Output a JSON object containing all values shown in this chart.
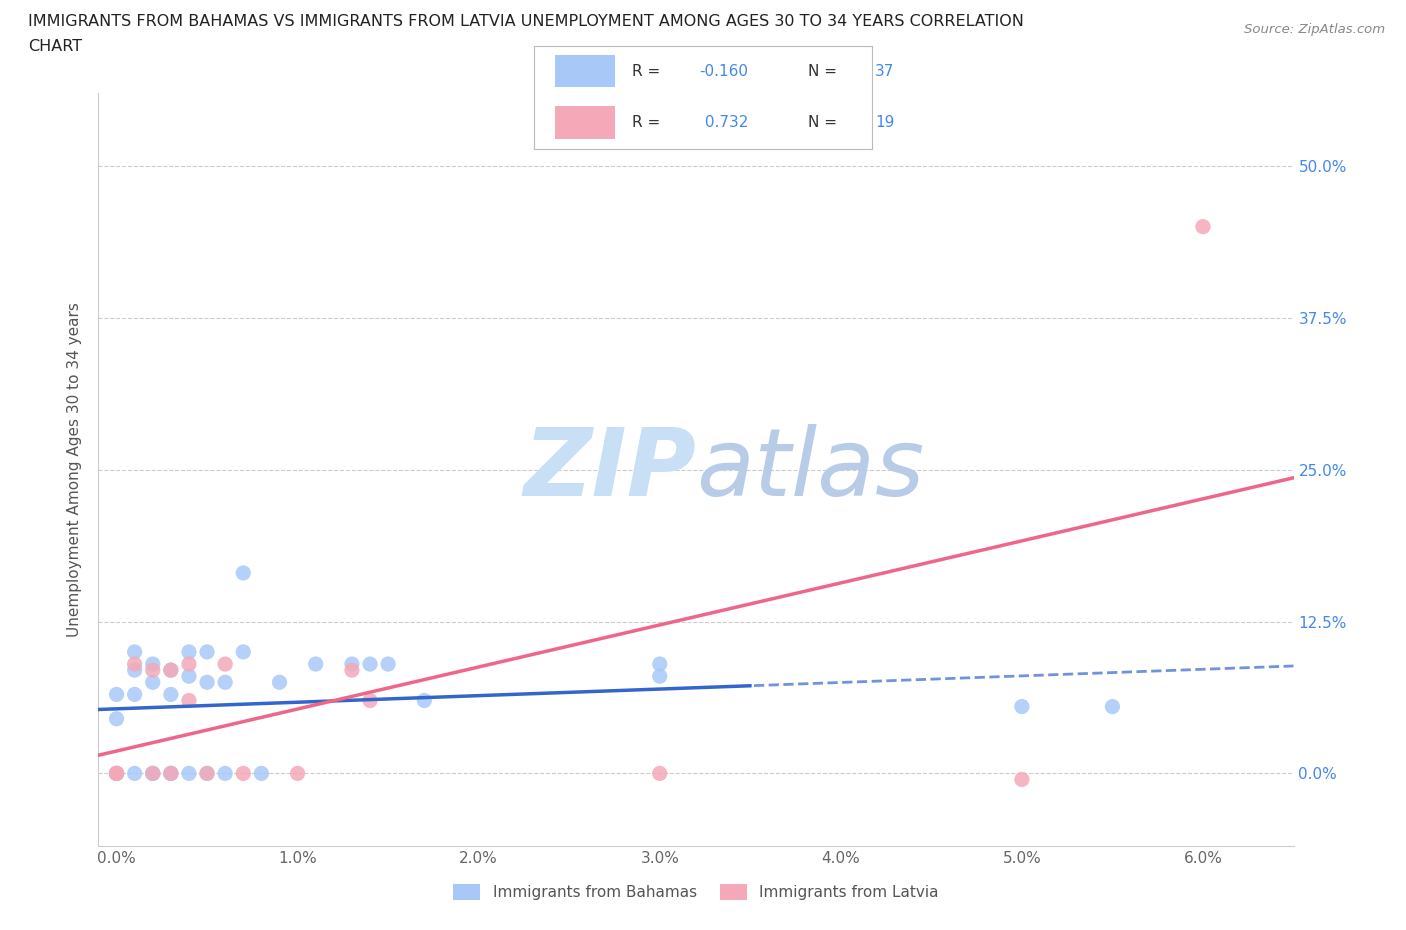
{
  "title_line1": "IMMIGRANTS FROM BAHAMAS VS IMMIGRANTS FROM LATVIA UNEMPLOYMENT AMONG AGES 30 TO 34 YEARS CORRELATION",
  "title_line2": "CHART",
  "source": "Source: ZipAtlas.com",
  "ylabel_label": "Unemployment Among Ages 30 to 34 years",
  "x_tick_labels": [
    "0.0%",
    "1.0%",
    "2.0%",
    "3.0%",
    "4.0%",
    "5.0%",
    "6.0%"
  ],
  "y_tick_labels_right": [
    "0.0%",
    "12.5%",
    "25.0%",
    "37.5%",
    "50.0%"
  ],
  "xlim": [
    -0.001,
    0.065
  ],
  "ylim": [
    -0.06,
    0.56
  ],
  "bahamas_R": -0.16,
  "bahamas_N": 37,
  "latvia_R": 0.732,
  "latvia_N": 19,
  "bahamas_color": "#a8c8f8",
  "latvia_color": "#f4a8b8",
  "bahamas_line_color": "#3366cc",
  "latvia_line_color": "#ee6688",
  "watermark": "ZIPatlas",
  "watermark_color_1": "#c8dff5",
  "watermark_color_2": "#b8cce8",
  "legend_box_color": "#f0f4ff",
  "text_color": "#333333",
  "right_axis_color": "#4488ee",
  "grid_color": "#cccccc",
  "bahamas_x": [
    0.0,
    0.0,
    0.0,
    0.0,
    0.0,
    0.001,
    0.001,
    0.001,
    0.001,
    0.002,
    0.002,
    0.002,
    0.002,
    0.003,
    0.003,
    0.003,
    0.003,
    0.003,
    0.004,
    0.004,
    0.004,
    0.005,
    0.005,
    0.005,
    0.006,
    0.006,
    0.007,
    0.008,
    0.009,
    0.01,
    0.011,
    0.013,
    0.014,
    0.015,
    0.016,
    0.05,
    0.055
  ],
  "bahamas_y": [
    0.0,
    0.0,
    0.0,
    0.04,
    0.07,
    0.0,
    0.065,
    0.085,
    0.1,
    0.0,
    0.0,
    0.07,
    0.09,
    0.0,
    0.0,
    0.065,
    0.085,
    0.1,
    0.0,
    0.08,
    0.1,
    0.0,
    0.07,
    0.1,
    0.0,
    0.08,
    0.1,
    0.0,
    0.07,
    0.085,
    0.09,
    0.09,
    0.09,
    0.09,
    0.05,
    0.05,
    0.05
  ],
  "latvia_x": [
    0.0,
    0.0,
    0.0,
    0.001,
    0.002,
    0.002,
    0.003,
    0.003,
    0.004,
    0.004,
    0.005,
    0.006,
    0.007,
    0.008,
    0.01,
    0.013,
    0.03,
    0.05,
    0.055
  ],
  "latvia_y": [
    0.0,
    0.0,
    0.0,
    0.09,
    0.0,
    0.085,
    0.0,
    0.085,
    0.06,
    0.09,
    0.0,
    0.09,
    0.0,
    0.08,
    0.0,
    0.09,
    0.0,
    0.04,
    0.45
  ]
}
